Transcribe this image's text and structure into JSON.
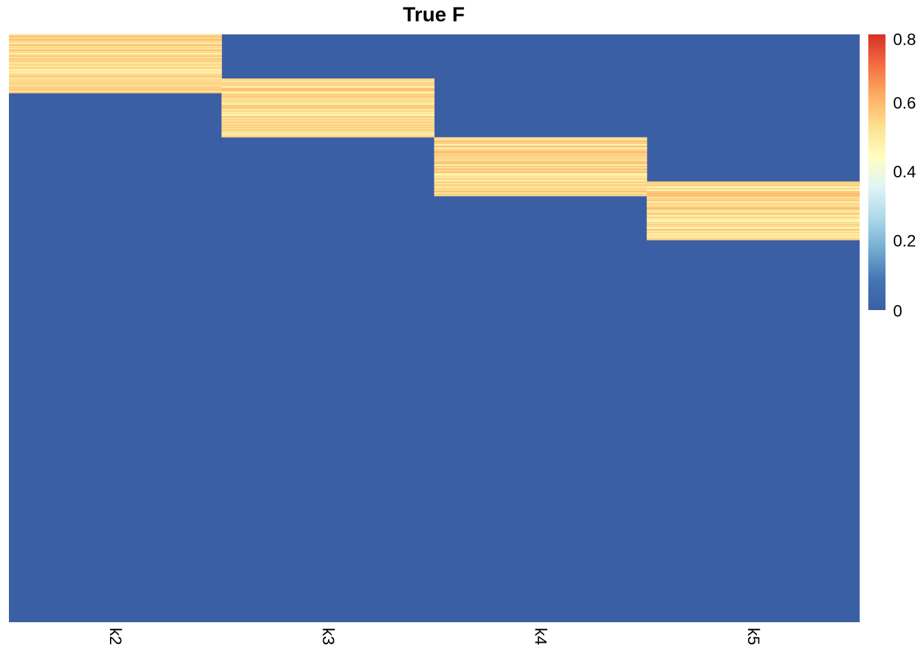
{
  "chart_data": {
    "type": "heatmap",
    "title": "True F",
    "columns": [
      "k2",
      "k3",
      "k4",
      "k5"
    ],
    "n_rows": 1000,
    "background_value": 0,
    "blocks": [
      {
        "column": "k2",
        "row_start": 0,
        "row_end": 100,
        "value_range": [
          0.45,
          0.62
        ]
      },
      {
        "column": "k3",
        "row_start": 75,
        "row_end": 175,
        "value_range": [
          0.45,
          0.62
        ]
      },
      {
        "column": "k4",
        "row_start": 175,
        "row_end": 275,
        "value_range": [
          0.45,
          0.62
        ]
      },
      {
        "column": "k5",
        "row_start": 250,
        "row_end": 350,
        "value_range": [
          0.45,
          0.62
        ]
      }
    ],
    "colorbar": {
      "range": [
        0,
        0.8
      ],
      "ticks": [
        "0",
        "0.2",
        "0.4",
        "0.6",
        "0.8"
      ],
      "tick_values": [
        0,
        0.2,
        0.4,
        0.6,
        0.8
      ],
      "colors": [
        "#3A5FA5",
        "#4575B4",
        "#74ADD1",
        "#ABD9E9",
        "#E0F3F8",
        "#FFFFBF",
        "#FEE090",
        "#FDAE61",
        "#F46D43",
        "#D73027"
      ]
    }
  }
}
